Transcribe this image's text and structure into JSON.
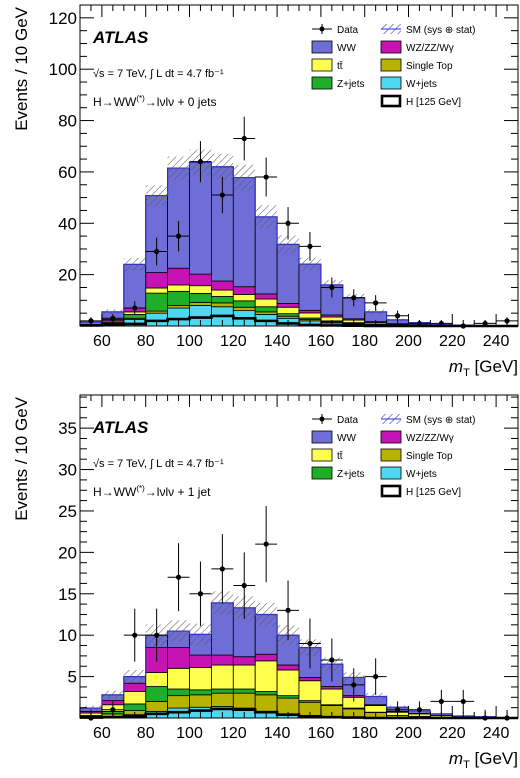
{
  "colors": {
    "ww": "#6e6ed6",
    "ttbar": "#ffff4d",
    "zjets": "#1fae2a",
    "wzzzwg": "#c613b3",
    "singletop": "#b8b200",
    "wjets": "#4dd8f0",
    "higgs": "#000000",
    "band_line": "#2f2fd0"
  },
  "chart_data": [
    {
      "type": "bar",
      "stacked": true,
      "experiment": "ATLAS",
      "energy_text": "√s = 7 TeV, ∫ L dt = 4.7 fb⁻¹",
      "channel_text": "H→WW(*)→lνlν + 0 jets",
      "xlabel": "m_T [GeV]",
      "ylabel": "Events / 10 GeV",
      "xlim": [
        50,
        250
      ],
      "ylim": [
        0,
        125
      ],
      "x_ticks": [
        60,
        80,
        100,
        120,
        140,
        160,
        180,
        200,
        220,
        240
      ],
      "y_ticks": [
        20,
        40,
        60,
        80,
        100,
        120
      ],
      "bin_edges": [
        50,
        60,
        70,
        80,
        90,
        100,
        110,
        120,
        130,
        140,
        150,
        160,
        170,
        180,
        190,
        200,
        210,
        220,
        230,
        240,
        250
      ],
      "legend": [
        "Data",
        "SM (sys ⊕ stat)",
        "WW",
        "WZ/ZZ/Wγ",
        "tt̄",
        "Single Top",
        "Z+jets",
        "W+jets",
        "H [125 GeV]"
      ],
      "series": [
        {
          "name": "W+jets",
          "color_key": "wjets",
          "values": [
            0.3,
            0.8,
            2.5,
            5,
            7,
            8,
            7.5,
            6,
            4.5,
            3,
            2,
            1.2,
            0.7,
            0.4,
            0.2,
            0.1,
            0.05,
            0,
            0,
            0
          ]
        },
        {
          "name": "Single Top",
          "color_key": "singletop",
          "values": [
            0.05,
            0.3,
            0.5,
            0.8,
            1,
            1.2,
            1.5,
            1.3,
            1,
            0.8,
            0.6,
            0.4,
            0.3,
            0.2,
            0.1,
            0.05,
            0,
            0,
            0,
            0
          ]
        },
        {
          "name": "Z+jets",
          "color_key": "zjets",
          "values": [
            0.05,
            0.4,
            1.5,
            7,
            5.5,
            3.5,
            2.5,
            2.5,
            2,
            1,
            0.5,
            0.4,
            0.3,
            0.2,
            0.1,
            0.05,
            0,
            0,
            0,
            0
          ]
        },
        {
          "name": "tt̄",
          "color_key": "ttbar",
          "values": [
            0.05,
            0.5,
            1,
            2,
            2.5,
            3,
            2.5,
            2.5,
            3,
            2.5,
            2,
            1.5,
            1,
            0.6,
            0.3,
            0.2,
            0.1,
            0.05,
            0,
            0
          ]
        },
        {
          "name": "WZ/ZZ/Wγ",
          "color_key": "wzzzwg",
          "values": [
            0.1,
            0.5,
            1.5,
            6,
            6.5,
            4.5,
            3.5,
            3,
            2,
            1.5,
            1,
            0.8,
            0.5,
            0.3,
            0.2,
            0.1,
            0.1,
            0.05,
            0,
            0
          ]
        },
        {
          "name": "WW",
          "color_key": "ww",
          "values": [
            1,
            3,
            17,
            30,
            39,
            43.5,
            44.5,
            42.5,
            30,
            23,
            18,
            11.7,
            8.2,
            3.8,
            1.5,
            0.8,
            0.35,
            0.2,
            0.1,
            0.05
          ]
        }
      ],
      "higgs_values": [
        0.2,
        0.5,
        0.8,
        2,
        2.7,
        3.3,
        3.9,
        3,
        2,
        1,
        0.4,
        0.2,
        0.1,
        0,
        0,
        0,
        0,
        0,
        0,
        0
      ],
      "band_halfwidth": [
        0.5,
        1,
        2.5,
        4,
        4.5,
        5,
        5,
        5,
        4.5,
        3.5,
        2.5,
        2,
        1.5,
        1,
        0.5,
        0.3,
        0.2,
        0.1,
        0.1,
        0.05
      ],
      "data_points": [
        {
          "x": 55,
          "y": 2,
          "err": 1.4
        },
        {
          "x": 65,
          "y": 3,
          "err": 1.7
        },
        {
          "x": 75,
          "y": 7,
          "err": 2.6
        },
        {
          "x": 85,
          "y": 29,
          "err": 5.4
        },
        {
          "x": 95,
          "y": 35,
          "err": 5.9
        },
        {
          "x": 105,
          "y": 64,
          "err": 8
        },
        {
          "x": 115,
          "y": 51,
          "err": 7.1
        },
        {
          "x": 125,
          "y": 73,
          "err": 8.5
        },
        {
          "x": 135,
          "y": 58,
          "err": 7.6
        },
        {
          "x": 145,
          "y": 40,
          "err": 6.3
        },
        {
          "x": 155,
          "y": 31,
          "err": 5.6
        },
        {
          "x": 165,
          "y": 15,
          "err": 3.9
        },
        {
          "x": 175,
          "y": 11,
          "err": 3.3
        },
        {
          "x": 185,
          "y": 9,
          "err": 3
        },
        {
          "x": 195,
          "y": 4,
          "err": 2
        },
        {
          "x": 205,
          "y": 1,
          "err": 1
        },
        {
          "x": 215,
          "y": 1,
          "err": 1
        },
        {
          "x": 225,
          "y": 0,
          "err": 1
        },
        {
          "x": 235,
          "y": 1,
          "err": 1
        },
        {
          "x": 245,
          "y": 2,
          "err": 1.4
        }
      ]
    },
    {
      "type": "bar",
      "stacked": true,
      "experiment": "ATLAS",
      "energy_text": "√s = 7 TeV, ∫ L dt = 4.7 fb⁻¹",
      "channel_text": "H→WW(*)→lνlν + 1 jet",
      "xlabel": "m_T [GeV]",
      "ylabel": "Events / 10 GeV",
      "xlim": [
        50,
        250
      ],
      "ylim": [
        0,
        39
      ],
      "x_ticks": [
        60,
        80,
        100,
        120,
        140,
        160,
        180,
        200,
        220,
        240
      ],
      "y_ticks": [
        5,
        10,
        15,
        20,
        25,
        30,
        35
      ],
      "bin_edges": [
        50,
        60,
        70,
        80,
        90,
        100,
        110,
        120,
        130,
        140,
        150,
        160,
        170,
        180,
        190,
        200,
        210,
        220,
        230,
        240,
        250
      ],
      "legend": [
        "Data",
        "SM (sys ⊕ stat)",
        "WW",
        "WZ/ZZ/Wγ",
        "tt̄",
        "Single Top",
        "Z+jets",
        "W+jets",
        "H [125 GeV]"
      ],
      "series": [
        {
          "name": "W+jets",
          "color_key": "wjets",
          "values": [
            0.1,
            0.2,
            0.4,
            0.8,
            1.2,
            1.3,
            1.4,
            1.2,
            0.8,
            0.5,
            0.3,
            0.2,
            0.1,
            0.05,
            0,
            0,
            0,
            0,
            0,
            0
          ]
        },
        {
          "name": "Single Top",
          "color_key": "singletop",
          "values": [
            0.1,
            0.3,
            0.5,
            1.2,
            1.5,
            1.5,
            1.6,
            1.8,
            2,
            1.9,
            1.6,
            1.3,
            1,
            0.6,
            0.3,
            0.2,
            0.1,
            0.05,
            0.05,
            0
          ]
        },
        {
          "name": "Z+jets",
          "color_key": "zjets",
          "values": [
            0.1,
            0.3,
            0.8,
            1.8,
            0.8,
            0.6,
            0.5,
            0.5,
            0.4,
            0.3,
            0.2,
            0.1,
            0.1,
            0.05,
            0,
            0,
            0,
            0,
            0,
            0
          ]
        },
        {
          "name": "tt̄",
          "color_key": "ttbar",
          "values": [
            0.3,
            0.8,
            1.5,
            1.7,
            2.5,
            2.7,
            2.9,
            2.9,
            3.7,
            3.1,
            2.4,
            1.9,
            1.3,
            0.8,
            0.4,
            0.3,
            0.2,
            0.1,
            0.05,
            0
          ]
        },
        {
          "name": "WZ/ZZ/Wγ",
          "color_key": "wzzzwg",
          "values": [
            0.2,
            0.5,
            1,
            3,
            2.5,
            1.5,
            1.2,
            1,
            0.8,
            0.6,
            0.4,
            0.3,
            0.2,
            0.1,
            0.1,
            0.05,
            0,
            0,
            0,
            0
          ]
        },
        {
          "name": "WW",
          "color_key": "ww",
          "values": [
            0.4,
            0.7,
            0.8,
            1.5,
            2,
            2.5,
            6.3,
            5.9,
            4.8,
            3.6,
            3.6,
            2.7,
            2.2,
            1,
            0.5,
            0.3,
            0.2,
            0.1,
            0.05,
            0
          ]
        }
      ],
      "higgs_values": [
        0.05,
        0.1,
        0.2,
        0.5,
        0.7,
        0.9,
        1.1,
        1,
        0.7,
        0.4,
        0.2,
        0.1,
        0.05,
        0,
        0,
        0,
        0,
        0,
        0,
        0
      ],
      "band_halfwidth": [
        0.3,
        0.5,
        0.8,
        1.3,
        1.3,
        1.3,
        1.4,
        1.4,
        1.4,
        1.2,
        1,
        0.8,
        0.6,
        0.4,
        0.2,
        0.2,
        0.1,
        0.1,
        0.05,
        0.05
      ],
      "data_points": [
        {
          "x": 55,
          "y": 0,
          "err": 1
        },
        {
          "x": 65,
          "y": 1,
          "err": 1
        },
        {
          "x": 75,
          "y": 10,
          "err": 3.2
        },
        {
          "x": 85,
          "y": 10,
          "err": 3.2
        },
        {
          "x": 95,
          "y": 17,
          "err": 4.1
        },
        {
          "x": 105,
          "y": 15,
          "err": 3.9
        },
        {
          "x": 115,
          "y": 18,
          "err": 4.2
        },
        {
          "x": 125,
          "y": 16,
          "err": 4
        },
        {
          "x": 135,
          "y": 21,
          "err": 4.6
        },
        {
          "x": 145,
          "y": 13,
          "err": 3.6
        },
        {
          "x": 155,
          "y": 9,
          "err": 3
        },
        {
          "x": 165,
          "y": 7,
          "err": 2.6
        },
        {
          "x": 175,
          "y": 4,
          "err": 2
        },
        {
          "x": 185,
          "y": 5,
          "err": 2.2
        },
        {
          "x": 195,
          "y": 1,
          "err": 1
        },
        {
          "x": 205,
          "y": 1,
          "err": 1
        },
        {
          "x": 215,
          "y": 2,
          "err": 1.4
        },
        {
          "x": 225,
          "y": 2,
          "err": 1.4
        },
        {
          "x": 235,
          "y": 0,
          "err": 1
        },
        {
          "x": 245,
          "y": 0,
          "err": 1
        }
      ]
    }
  ]
}
